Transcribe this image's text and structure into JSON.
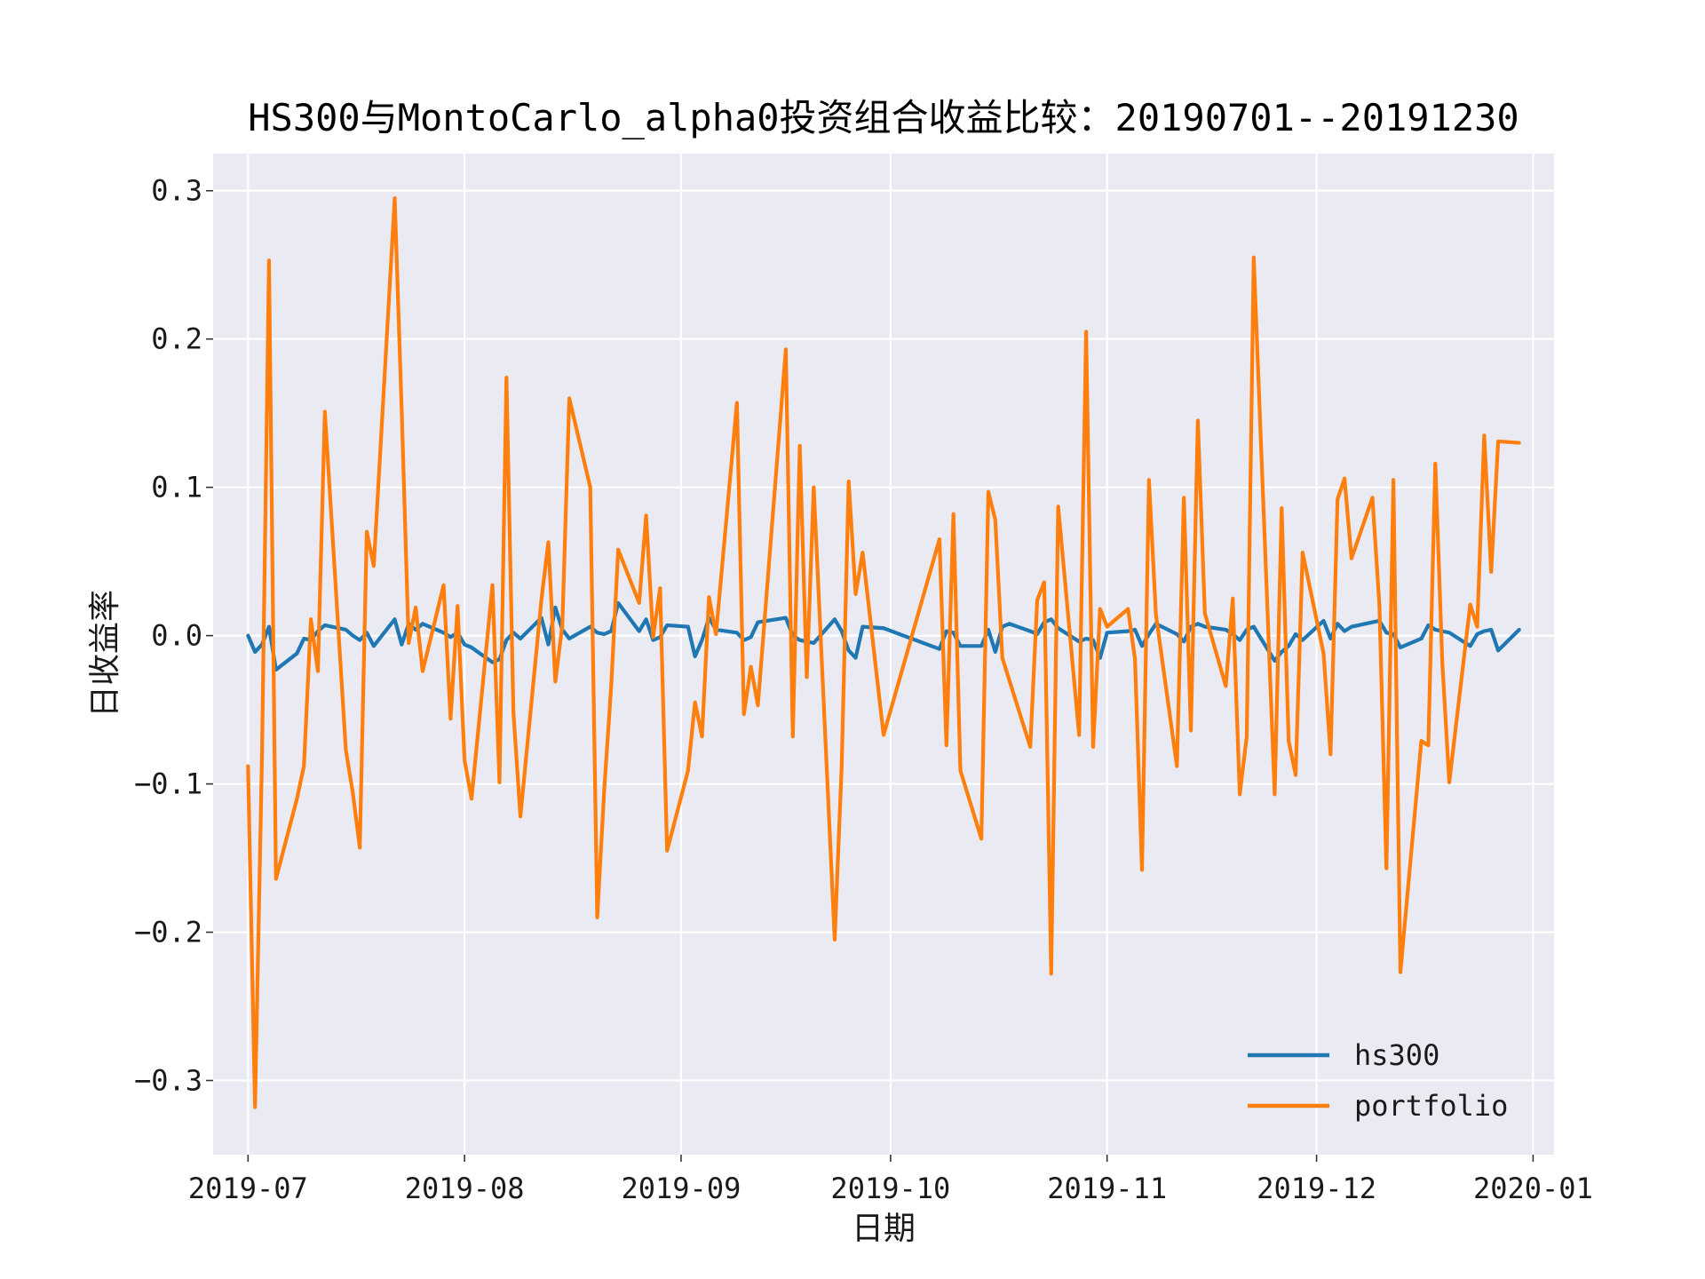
{
  "chart_data": {
    "type": "line",
    "title": "HS300与MontoCarlo_alpha0投资组合收益比较：20190701--20191230",
    "xlabel": "日期",
    "ylabel": "日收益率",
    "xlim": [
      "2019-06-26",
      "2020-01-04"
    ],
    "ylim": [
      -0.35,
      0.325
    ],
    "xticks": [
      "2019-07-01",
      "2019-08-01",
      "2019-09-01",
      "2019-10-01",
      "2019-11-01",
      "2019-12-01",
      "2020-01-01"
    ],
    "xtick_labels": [
      "2019-07",
      "2019-08",
      "2019-09",
      "2019-10",
      "2019-11",
      "2019-12",
      "2020-01"
    ],
    "yticks": [
      -0.3,
      -0.2,
      -0.1,
      0.0,
      0.1,
      0.2,
      0.3
    ],
    "ytick_labels": [
      "−0.3",
      "−0.2",
      "−0.1",
      "0.0",
      "0.1",
      "0.2",
      "0.3"
    ],
    "grid": true,
    "legend_position": "lower right",
    "series": [
      {
        "name": "hs300",
        "color": "#1f77b4",
        "points": [
          [
            "2019-07-01",
            0.0
          ],
          [
            "2019-07-02",
            -0.011
          ],
          [
            "2019-07-03",
            -0.006
          ],
          [
            "2019-07-04",
            0.006
          ],
          [
            "2019-07-05",
            -0.023
          ],
          [
            "2019-07-08",
            -0.012
          ],
          [
            "2019-07-09",
            -0.002
          ],
          [
            "2019-07-10",
            -0.003
          ],
          [
            "2019-07-11",
            0.003
          ],
          [
            "2019-07-12",
            0.007
          ],
          [
            "2019-07-15",
            0.004
          ],
          [
            "2019-07-16",
            0.0
          ],
          [
            "2019-07-17",
            -0.003
          ],
          [
            "2019-07-18",
            0.002
          ],
          [
            "2019-07-19",
            -0.007
          ],
          [
            "2019-07-22",
            0.011
          ],
          [
            "2019-07-23",
            -0.006
          ],
          [
            "2019-07-24",
            0.008
          ],
          [
            "2019-07-25",
            0.004
          ],
          [
            "2019-07-26",
            0.008
          ],
          [
            "2019-07-29",
            0.002
          ],
          [
            "2019-07-30",
            -0.001
          ],
          [
            "2019-07-31",
            0.002
          ],
          [
            "2019-08-01",
            -0.006
          ],
          [
            "2019-08-02",
            -0.008
          ],
          [
            "2019-08-05",
            -0.018
          ],
          [
            "2019-08-06",
            -0.016
          ],
          [
            "2019-08-07",
            -0.003
          ],
          [
            "2019-08-08",
            0.002
          ],
          [
            "2019-08-09",
            -0.002
          ],
          [
            "2019-08-12",
            0.012
          ],
          [
            "2019-08-13",
            -0.006
          ],
          [
            "2019-08-14",
            0.019
          ],
          [
            "2019-08-15",
            0.004
          ],
          [
            "2019-08-16",
            -0.002
          ],
          [
            "2019-08-19",
            0.006
          ],
          [
            "2019-08-20",
            0.002
          ],
          [
            "2019-08-21",
            0.001
          ],
          [
            "2019-08-22",
            0.003
          ],
          [
            "2019-08-23",
            0.022
          ],
          [
            "2019-08-26",
            0.003
          ],
          [
            "2019-08-27",
            0.011
          ],
          [
            "2019-08-28",
            -0.003
          ],
          [
            "2019-08-29",
            -0.001
          ],
          [
            "2019-08-30",
            0.007
          ],
          [
            "2019-09-02",
            0.006
          ],
          [
            "2019-09-03",
            -0.014
          ],
          [
            "2019-09-04",
            -0.003
          ],
          [
            "2019-09-05",
            0.012
          ],
          [
            "2019-09-06",
            0.004
          ],
          [
            "2019-09-09",
            0.002
          ],
          [
            "2019-09-10",
            -0.003
          ],
          [
            "2019-09-11",
            -0.001
          ],
          [
            "2019-09-12",
            0.009
          ],
          [
            "2019-09-16",
            0.012
          ],
          [
            "2019-09-17",
            0.0
          ],
          [
            "2019-09-18",
            -0.003
          ],
          [
            "2019-09-19",
            -0.004
          ],
          [
            "2019-09-20",
            -0.005
          ],
          [
            "2019-09-23",
            0.011
          ],
          [
            "2019-09-24",
            0.003
          ],
          [
            "2019-09-25",
            -0.01
          ],
          [
            "2019-09-26",
            -0.015
          ],
          [
            "2019-09-27",
            0.006
          ],
          [
            "2019-09-30",
            0.005
          ],
          [
            "2019-10-08",
            -0.009
          ],
          [
            "2019-10-09",
            0.003
          ],
          [
            "2019-10-10",
            0.002
          ],
          [
            "2019-10-11",
            -0.007
          ],
          [
            "2019-10-14",
            -0.007
          ],
          [
            "2019-10-15",
            0.004
          ],
          [
            "2019-10-16",
            -0.011
          ],
          [
            "2019-10-17",
            0.006
          ],
          [
            "2019-10-18",
            0.008
          ],
          [
            "2019-10-21",
            0.003
          ],
          [
            "2019-10-22",
            0.001
          ],
          [
            "2019-10-23",
            0.009
          ],
          [
            "2019-10-24",
            0.011
          ],
          [
            "2019-10-25",
            0.005
          ],
          [
            "2019-10-28",
            -0.004
          ],
          [
            "2019-10-29",
            -0.002
          ],
          [
            "2019-10-30",
            -0.003
          ],
          [
            "2019-10-31",
            -0.015
          ],
          [
            "2019-11-01",
            0.002
          ],
          [
            "2019-11-04",
            0.003
          ],
          [
            "2019-11-05",
            0.004
          ],
          [
            "2019-11-06",
            -0.007
          ],
          [
            "2019-11-07",
            0.001
          ],
          [
            "2019-11-08",
            0.008
          ],
          [
            "2019-11-11",
            0.001
          ],
          [
            "2019-11-12",
            -0.004
          ],
          [
            "2019-11-13",
            0.006
          ],
          [
            "2019-11-14",
            0.008
          ],
          [
            "2019-11-15",
            0.006
          ],
          [
            "2019-11-18",
            0.004
          ],
          [
            "2019-11-19",
            0.001
          ],
          [
            "2019-11-20",
            -0.003
          ],
          [
            "2019-11-21",
            0.004
          ],
          [
            "2019-11-22",
            0.006
          ],
          [
            "2019-11-25",
            -0.017
          ],
          [
            "2019-11-26",
            -0.011
          ],
          [
            "2019-11-27",
            -0.007
          ],
          [
            "2019-11-28",
            0.001
          ],
          [
            "2019-11-29",
            -0.003
          ],
          [
            "2019-12-02",
            0.01
          ],
          [
            "2019-12-03",
            -0.002
          ],
          [
            "2019-12-04",
            0.008
          ],
          [
            "2019-12-05",
            0.003
          ],
          [
            "2019-12-06",
            0.006
          ],
          [
            "2019-12-09",
            0.009
          ],
          [
            "2019-12-10",
            0.01
          ],
          [
            "2019-12-11",
            0.002
          ],
          [
            "2019-12-12",
            0.001
          ],
          [
            "2019-12-13",
            -0.008
          ],
          [
            "2019-12-16",
            -0.002
          ],
          [
            "2019-12-17",
            0.007
          ],
          [
            "2019-12-18",
            0.004
          ],
          [
            "2019-12-19",
            0.003
          ],
          [
            "2019-12-20",
            0.002
          ],
          [
            "2019-12-23",
            -0.007
          ],
          [
            "2019-12-24",
            0.001
          ],
          [
            "2019-12-25",
            0.003
          ],
          [
            "2019-12-26",
            0.004
          ],
          [
            "2019-12-27",
            -0.01
          ],
          [
            "2019-12-30",
            0.004
          ]
        ]
      },
      {
        "name": "portfolio",
        "color": "#ff7f0e",
        "points": [
          [
            "2019-07-01",
            -0.088
          ],
          [
            "2019-07-02",
            -0.318
          ],
          [
            "2019-07-03",
            -0.08
          ],
          [
            "2019-07-04",
            0.253
          ],
          [
            "2019-07-05",
            -0.164
          ],
          [
            "2019-07-08",
            -0.11
          ],
          [
            "2019-07-09",
            -0.088
          ],
          [
            "2019-07-10",
            0.011
          ],
          [
            "2019-07-11",
            -0.024
          ],
          [
            "2019-07-12",
            0.151
          ],
          [
            "2019-07-15",
            -0.077
          ],
          [
            "2019-07-16",
            -0.106
          ],
          [
            "2019-07-17",
            -0.143
          ],
          [
            "2019-07-18",
            0.07
          ],
          [
            "2019-07-19",
            0.047
          ],
          [
            "2019-07-22",
            0.295
          ],
          [
            "2019-07-23",
            0.152
          ],
          [
            "2019-07-24",
            -0.005
          ],
          [
            "2019-07-25",
            0.019
          ],
          [
            "2019-07-26",
            -0.024
          ],
          [
            "2019-07-29",
            0.034
          ],
          [
            "2019-07-30",
            -0.056
          ],
          [
            "2019-07-31",
            0.02
          ],
          [
            "2019-08-01",
            -0.084
          ],
          [
            "2019-08-02",
            -0.11
          ],
          [
            "2019-08-05",
            0.034
          ],
          [
            "2019-08-06",
            -0.099
          ],
          [
            "2019-08-07",
            0.174
          ],
          [
            "2019-08-08",
            -0.052
          ],
          [
            "2019-08-09",
            -0.122
          ],
          [
            "2019-08-12",
            0.024
          ],
          [
            "2019-08-13",
            0.063
          ],
          [
            "2019-08-14",
            -0.031
          ],
          [
            "2019-08-15",
            0.007
          ],
          [
            "2019-08-16",
            0.16
          ],
          [
            "2019-08-19",
            0.1
          ],
          [
            "2019-08-20",
            -0.19
          ],
          [
            "2019-08-21",
            -0.104
          ],
          [
            "2019-08-22",
            -0.034
          ],
          [
            "2019-08-23",
            0.058
          ],
          [
            "2019-08-26",
            0.022
          ],
          [
            "2019-08-27",
            0.081
          ],
          [
            "2019-08-28",
            -0.001
          ],
          [
            "2019-08-29",
            0.032
          ],
          [
            "2019-08-30",
            -0.145
          ],
          [
            "2019-09-02",
            -0.091
          ],
          [
            "2019-09-03",
            -0.045
          ],
          [
            "2019-09-04",
            -0.068
          ],
          [
            "2019-09-05",
            0.026
          ],
          [
            "2019-09-06",
            0.001
          ],
          [
            "2019-09-09",
            0.157
          ],
          [
            "2019-09-10",
            -0.053
          ],
          [
            "2019-09-11",
            -0.021
          ],
          [
            "2019-09-12",
            -0.047
          ],
          [
            "2019-09-16",
            0.193
          ],
          [
            "2019-09-17",
            -0.068
          ],
          [
            "2019-09-18",
            0.128
          ],
          [
            "2019-09-19",
            -0.028
          ],
          [
            "2019-09-20",
            0.1
          ],
          [
            "2019-09-23",
            -0.205
          ],
          [
            "2019-09-24",
            -0.088
          ],
          [
            "2019-09-25",
            0.104
          ],
          [
            "2019-09-26",
            0.028
          ],
          [
            "2019-09-27",
            0.056
          ],
          [
            "2019-09-30",
            -0.067
          ],
          [
            "2019-10-08",
            0.065
          ],
          [
            "2019-10-09",
            -0.074
          ],
          [
            "2019-10-10",
            0.082
          ],
          [
            "2019-10-11",
            -0.091
          ],
          [
            "2019-10-14",
            -0.137
          ],
          [
            "2019-10-15",
            0.097
          ],
          [
            "2019-10-16",
            0.078
          ],
          [
            "2019-10-17",
            -0.015
          ],
          [
            "2019-10-18",
            -0.03
          ],
          [
            "2019-10-21",
            -0.075
          ],
          [
            "2019-10-22",
            0.024
          ],
          [
            "2019-10-23",
            0.036
          ],
          [
            "2019-10-24",
            -0.228
          ],
          [
            "2019-10-25",
            0.087
          ],
          [
            "2019-10-28",
            -0.067
          ],
          [
            "2019-10-29",
            0.205
          ],
          [
            "2019-10-30",
            -0.075
          ],
          [
            "2019-10-31",
            0.018
          ],
          [
            "2019-11-01",
            0.006
          ],
          [
            "2019-11-04",
            0.018
          ],
          [
            "2019-11-05",
            -0.016
          ],
          [
            "2019-11-06",
            -0.158
          ],
          [
            "2019-11-07",
            0.105
          ],
          [
            "2019-11-08",
            0.014
          ],
          [
            "2019-11-11",
            -0.088
          ],
          [
            "2019-11-12",
            0.093
          ],
          [
            "2019-11-13",
            -0.064
          ],
          [
            "2019-11-14",
            0.145
          ],
          [
            "2019-11-15",
            0.015
          ],
          [
            "2019-11-18",
            -0.034
          ],
          [
            "2019-11-19",
            0.025
          ],
          [
            "2019-11-20",
            -0.107
          ],
          [
            "2019-11-21",
            -0.068
          ],
          [
            "2019-11-22",
            0.255
          ],
          [
            "2019-11-25",
            -0.107
          ],
          [
            "2019-11-26",
            0.086
          ],
          [
            "2019-11-27",
            -0.071
          ],
          [
            "2019-11-28",
            -0.094
          ],
          [
            "2019-11-29",
            0.056
          ],
          [
            "2019-12-02",
            -0.012
          ],
          [
            "2019-12-03",
            -0.08
          ],
          [
            "2019-12-04",
            0.092
          ],
          [
            "2019-12-05",
            0.106
          ],
          [
            "2019-12-06",
            0.052
          ],
          [
            "2019-12-09",
            0.093
          ],
          [
            "2019-12-10",
            0.02
          ],
          [
            "2019-12-11",
            -0.157
          ],
          [
            "2019-12-12",
            0.105
          ],
          [
            "2019-12-13",
            -0.227
          ],
          [
            "2019-12-16",
            -0.071
          ],
          [
            "2019-12-17",
            -0.074
          ],
          [
            "2019-12-18",
            0.116
          ],
          [
            "2019-12-19",
            -0.018
          ],
          [
            "2019-12-20",
            -0.099
          ],
          [
            "2019-12-23",
            0.021
          ],
          [
            "2019-12-24",
            0.006
          ],
          [
            "2019-12-25",
            0.135
          ],
          [
            "2019-12-26",
            0.043
          ],
          [
            "2019-12-27",
            0.131
          ],
          [
            "2019-12-30",
            0.13
          ]
        ]
      }
    ]
  }
}
